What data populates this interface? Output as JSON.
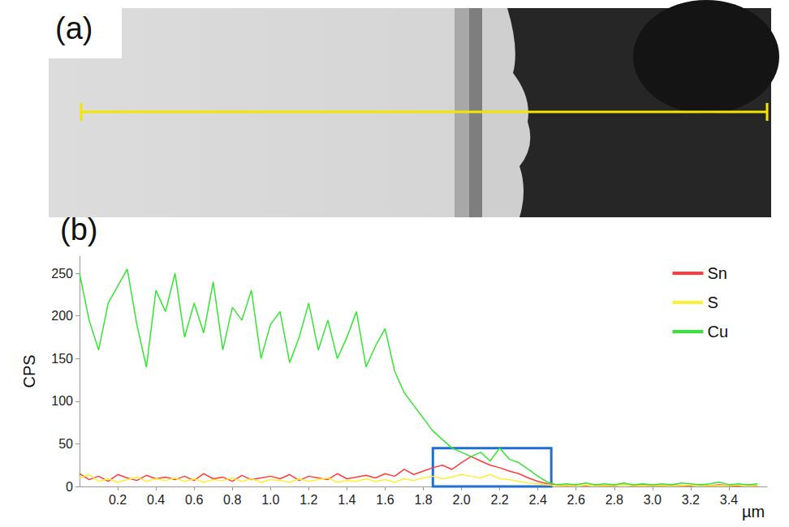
{
  "image_panel": {
    "label": "(a)"
  },
  "chart_data": {
    "type": "line",
    "panel_label": "(b)",
    "x_label": "µm",
    "y_label": "CPS",
    "x": [
      0,
      0.05,
      0.1,
      0.15,
      0.2,
      0.25,
      0.3,
      0.35,
      0.4,
      0.45,
      0.5,
      0.55,
      0.6,
      0.65,
      0.7,
      0.75,
      0.8,
      0.85,
      0.9,
      0.95,
      1.0,
      1.05,
      1.1,
      1.15,
      1.2,
      1.25,
      1.3,
      1.35,
      1.4,
      1.45,
      1.5,
      1.55,
      1.6,
      1.65,
      1.7,
      1.75,
      1.8,
      1.85,
      1.9,
      1.95,
      2.0,
      2.05,
      2.1,
      2.15,
      2.2,
      2.25,
      2.3,
      2.35,
      2.4,
      2.45,
      2.5,
      2.55,
      2.6,
      2.65,
      2.7,
      2.75,
      2.8,
      2.85,
      2.9,
      2.95,
      3.0,
      3.05,
      3.1,
      3.15,
      3.2,
      3.25,
      3.3,
      3.35,
      3.4,
      3.45,
      3.5,
      3.55
    ],
    "series": [
      {
        "name": "Sn",
        "color": "#ff3b3b",
        "line_style": "solid",
        "values": [
          15,
          8,
          12,
          6,
          14,
          10,
          7,
          13,
          9,
          11,
          8,
          12,
          7,
          15,
          9,
          11,
          6,
          13,
          8,
          10,
          12,
          9,
          14,
          7,
          12,
          10,
          8,
          15,
          9,
          11,
          13,
          10,
          15,
          12,
          20,
          14,
          18,
          22,
          25,
          20,
          28,
          35,
          30,
          25,
          22,
          18,
          15,
          10,
          6,
          3,
          2,
          1,
          2,
          1,
          2,
          1,
          1,
          2,
          1,
          2,
          1,
          1,
          2,
          1,
          1,
          2,
          1,
          2,
          1,
          1,
          2,
          1
        ]
      },
      {
        "name": "S",
        "color": "#ffee33",
        "line_style": "solid",
        "values": [
          10,
          14,
          6,
          9,
          5,
          8,
          11,
          6,
          9,
          7,
          10,
          6,
          9,
          5,
          8,
          7,
          10,
          6,
          9,
          5,
          8,
          7,
          5,
          9,
          6,
          8,
          10,
          5,
          7,
          6,
          9,
          6,
          8,
          5,
          9,
          7,
          10,
          12,
          9,
          11,
          14,
          12,
          10,
          14,
          9,
          8,
          6,
          4,
          3,
          2,
          1,
          1,
          1,
          2,
          1,
          1,
          1,
          2,
          1,
          1,
          1,
          1,
          1,
          1,
          2,
          1,
          1,
          1,
          1,
          2,
          1,
          1
        ]
      },
      {
        "name": "Cu",
        "color": "#33e633",
        "line_style": "solid",
        "values": [
          250,
          195,
          160,
          215,
          235,
          255,
          190,
          140,
          230,
          205,
          250,
          175,
          215,
          180,
          240,
          160,
          210,
          195,
          230,
          150,
          190,
          205,
          145,
          175,
          215,
          160,
          195,
          150,
          175,
          205,
          140,
          165,
          185,
          135,
          110,
          95,
          80,
          65,
          55,
          45,
          40,
          35,
          40,
          30,
          45,
          32,
          28,
          20,
          12,
          5,
          2,
          3,
          2,
          4,
          2,
          3,
          2,
          4,
          2,
          3,
          2,
          3,
          2,
          4,
          3,
          2,
          3,
          5,
          2,
          3,
          2,
          3
        ]
      }
    ],
    "xlim": [
      0,
      3.6
    ],
    "xticks": [
      0.2,
      0.4,
      0.6,
      0.8,
      {
        "value": 1,
        "label": "1.0"
      },
      1.2,
      1.4,
      1.6,
      1.8,
      {
        "value": 2,
        "label": "2.0"
      },
      2.2,
      2.4,
      2.6,
      2.8,
      {
        "value": 3,
        "label": "3.0"
      },
      3.2,
      3.4
    ],
    "ylim": [
      0,
      270
    ],
    "yticks": [
      0,
      50,
      100,
      150,
      200,
      250
    ],
    "box": {
      "x": [
        1.85,
        2.47
      ],
      "y": [
        0,
        45
      ],
      "color": "#1f6fd1"
    },
    "grid": false,
    "legend": "top-right"
  }
}
